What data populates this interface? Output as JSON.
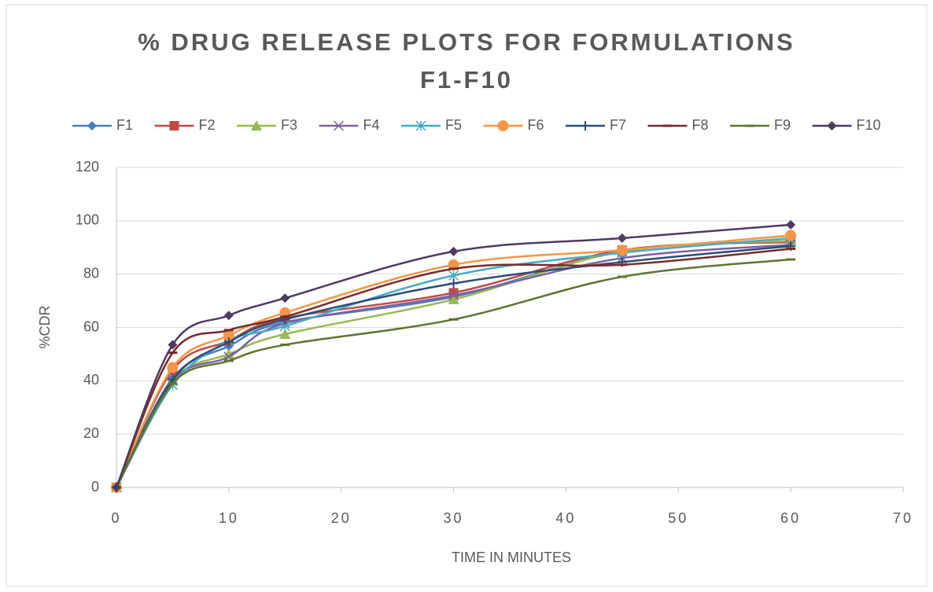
{
  "chart_data": {
    "type": "line",
    "title": "% DRUG RELEASE PLOTS FOR FORMULATIONS F1-F10",
    "x_label": "TIME IN MINUTES",
    "y_label": "%CDR",
    "x": [
      0,
      5,
      10,
      15,
      30,
      45,
      60
    ],
    "xlim": [
      0,
      70
    ],
    "xticks": [
      0,
      10,
      20,
      30,
      40,
      50,
      60,
      70
    ],
    "ylim": [
      0,
      120
    ],
    "yticks": [
      0,
      20,
      40,
      60,
      80,
      100,
      120
    ],
    "grid": true,
    "smooth": true,
    "legend": "top",
    "series": [
      {
        "name": "F1",
        "color": "#4a7ebb",
        "marker": "diamond",
        "values": [
          0,
          41,
          53,
          62,
          71.5,
          88.5,
          92.5
        ]
      },
      {
        "name": "F2",
        "color": "#be4b48",
        "marker": "square",
        "values": [
          0,
          44,
          55,
          63.5,
          73,
          89,
          92
        ]
      },
      {
        "name": "F3",
        "color": "#98b954",
        "marker": "triangle",
        "values": [
          0,
          40,
          50,
          57.5,
          70.5,
          88.5,
          92.5
        ]
      },
      {
        "name": "F4",
        "color": "#7d60a0",
        "marker": "x",
        "values": [
          0,
          40,
          49,
          61.5,
          72,
          86,
          91
        ]
      },
      {
        "name": "F5",
        "color": "#46aac5",
        "marker": "star",
        "values": [
          0,
          38.5,
          55,
          60.5,
          79.5,
          88,
          93.5
        ]
      },
      {
        "name": "F6",
        "color": "#f79646",
        "marker": "circle",
        "values": [
          0,
          45,
          57,
          65.5,
          83.5,
          89,
          94.5
        ]
      },
      {
        "name": "F7",
        "color": "#2c4d75",
        "marker": "plus",
        "values": [
          0,
          40.5,
          54.5,
          63,
          76.5,
          84.5,
          90.5
        ]
      },
      {
        "name": "F8",
        "color": "#772c2a",
        "marker": "dash",
        "values": [
          0,
          50.5,
          59,
          64,
          82,
          83.5,
          89.5
        ]
      },
      {
        "name": "F9",
        "color": "#5f7530",
        "marker": "dash",
        "values": [
          0,
          39,
          47.5,
          53.5,
          63,
          79,
          85.5
        ]
      },
      {
        "name": "F10",
        "color": "#4d3b62",
        "marker": "diamond",
        "values": [
          0,
          53.5,
          64.5,
          71,
          88.5,
          93.5,
          98.5
        ]
      }
    ]
  }
}
